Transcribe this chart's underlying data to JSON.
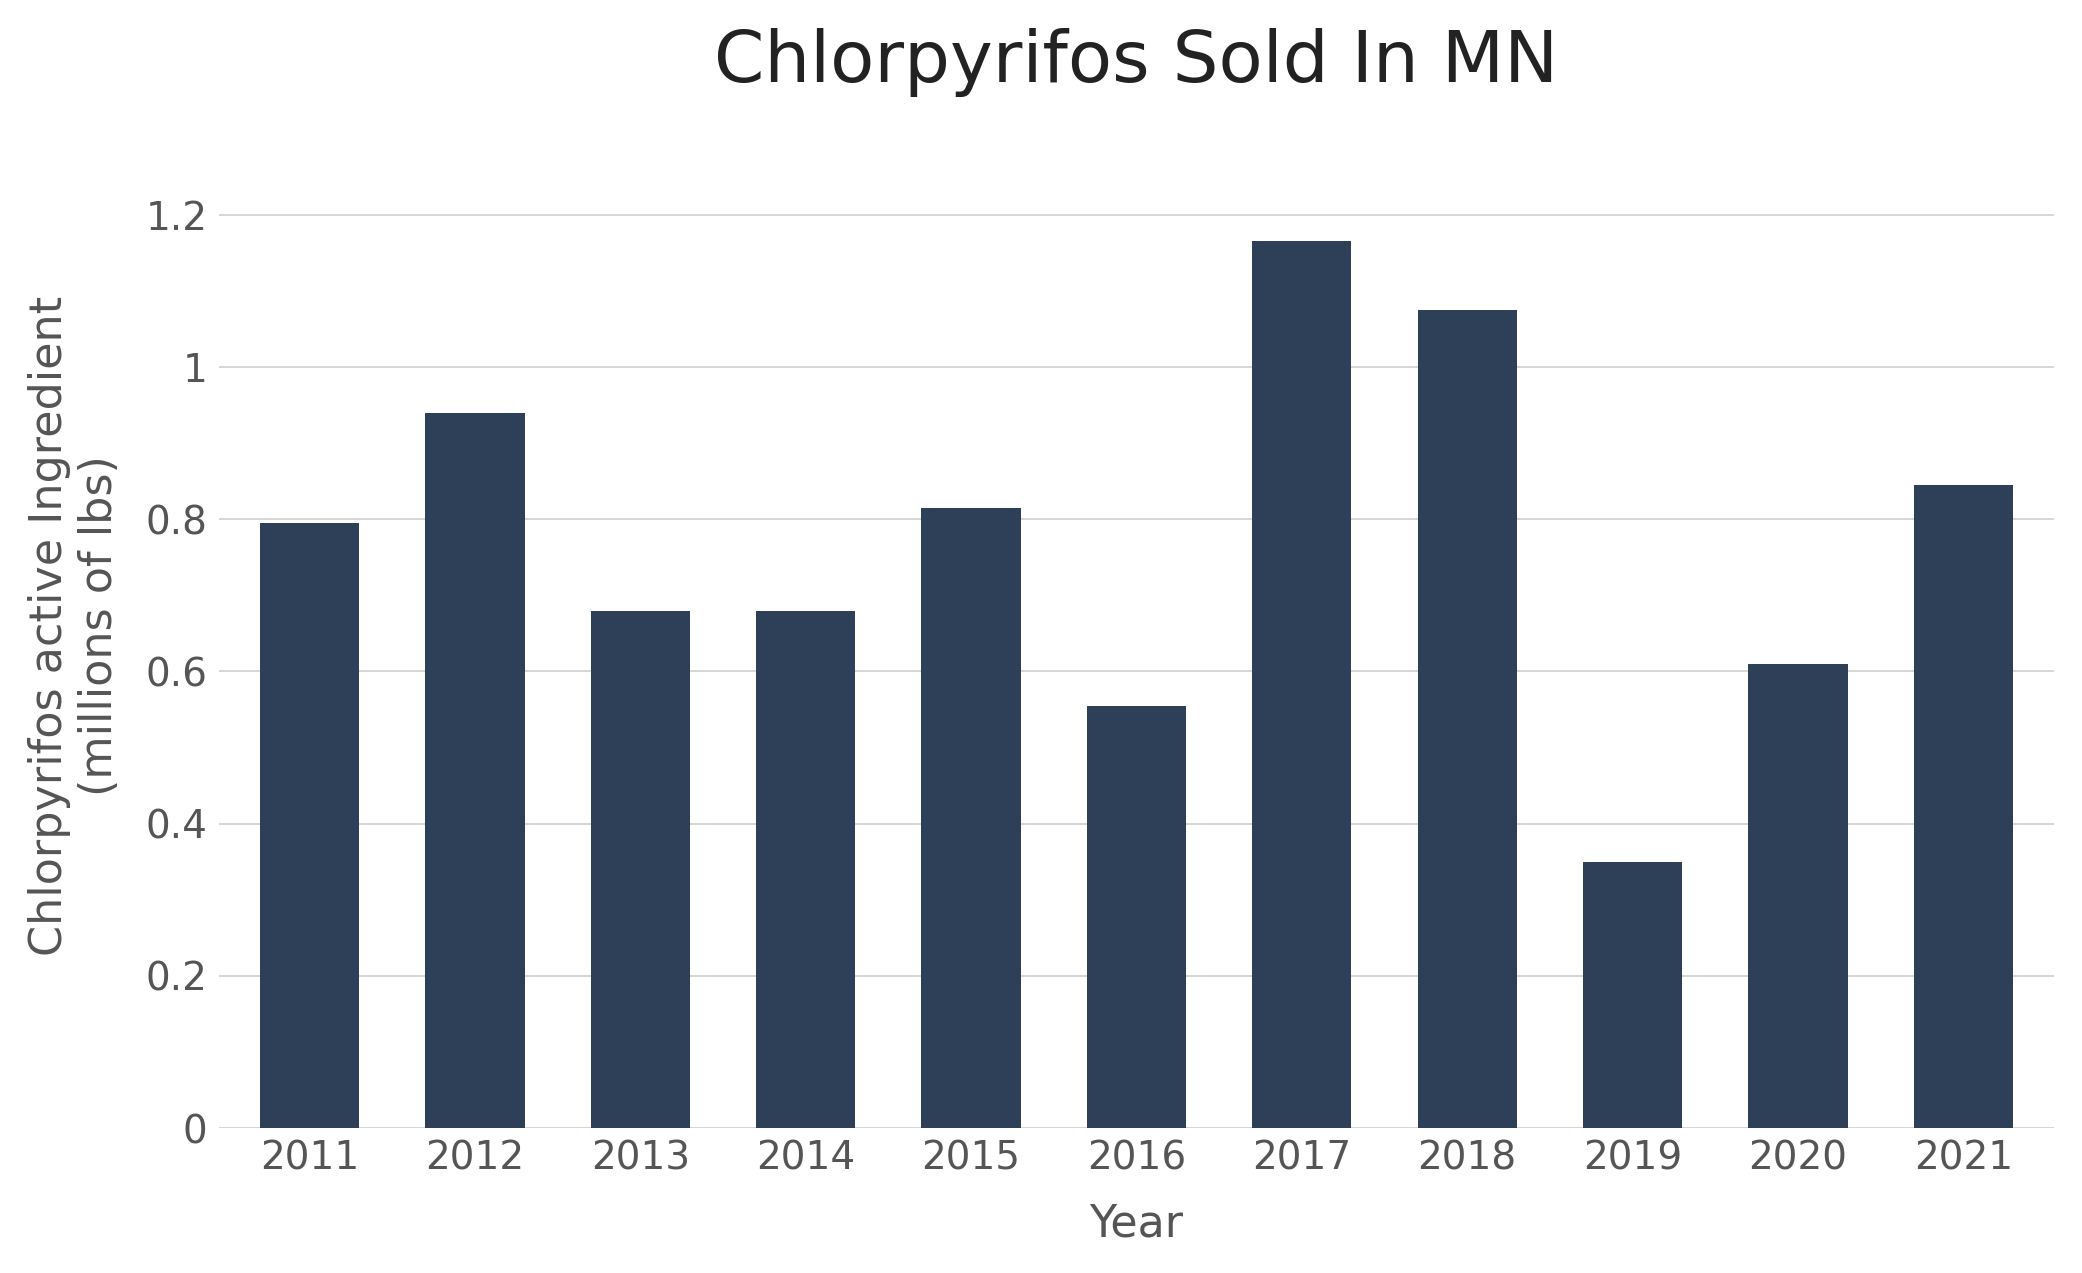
{
  "title": "Chlorpyrifos Sold In MN",
  "xlabel": "Year",
  "ylabel": "Chlorpyrifos active Ingredient\n(millions of lbs)",
  "years": [
    2011,
    2012,
    2013,
    2014,
    2015,
    2016,
    2017,
    2018,
    2019,
    2020,
    2021
  ],
  "values": [
    0.795,
    0.94,
    0.68,
    0.68,
    0.815,
    0.555,
    1.165,
    1.075,
    0.35,
    0.61,
    0.845
  ],
  "bar_color": "#2e4057",
  "background_color": "#ffffff",
  "ylim": [
    0,
    1.32
  ],
  "yticks": [
    0,
    0.2,
    0.4,
    0.6,
    0.8,
    1.0,
    1.2
  ],
  "ytick_labels": [
    "0",
    "0.2",
    "0.4",
    "0.6",
    "0.8",
    "1",
    "1.2"
  ],
  "title_fontsize": 52,
  "axis_label_fontsize": 32,
  "tick_fontsize": 28,
  "bar_width": 0.6,
  "grid_color": "#d0d0d0",
  "grid_linewidth": 1.2
}
